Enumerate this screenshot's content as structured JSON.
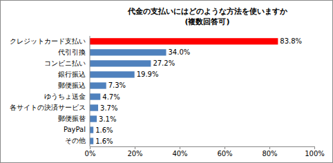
{
  "chart_data": {
    "type": "bar",
    "orientation": "horizontal",
    "title": "代金の支払いにはどのような方法を使いますか",
    "subtitle": "(複数回答可)",
    "categories": [
      "クレジットカード支払い",
      "代引引換",
      "コンビニ払い",
      "銀行振込",
      "郵便振込",
      "ゆうちょ送金",
      "各サイトの決済サービス",
      "郵便振替",
      "PayPal",
      "その他"
    ],
    "values": [
      83.8,
      34.0,
      27.2,
      19.9,
      7.3,
      4.7,
      3.7,
      3.1,
      1.6,
      1.6
    ],
    "value_labels": [
      "83.8%",
      "34.0%",
      "27.2%",
      "19.9%",
      "7.3%",
      "4.7%",
      "3.7%",
      "3.1%",
      "1.6%",
      "1.6%"
    ],
    "data_labels": true,
    "colors": [
      "#ff0000",
      "#4f81bd",
      "#4f81bd",
      "#4f81bd",
      "#4f81bd",
      "#4f81bd",
      "#4f81bd",
      "#4f81bd",
      "#4f81bd",
      "#4f81bd"
    ],
    "xlim": [
      0,
      100
    ],
    "xticks": [
      {
        "value": 0,
        "label": "0%"
      },
      {
        "value": 20,
        "label": "20%"
      },
      {
        "value": 40,
        "label": "40%"
      },
      {
        "value": 60,
        "label": "60%"
      },
      {
        "value": 80,
        "label": "80%"
      },
      {
        "value": 100,
        "label": "100%"
      }
    ],
    "grid": false
  }
}
